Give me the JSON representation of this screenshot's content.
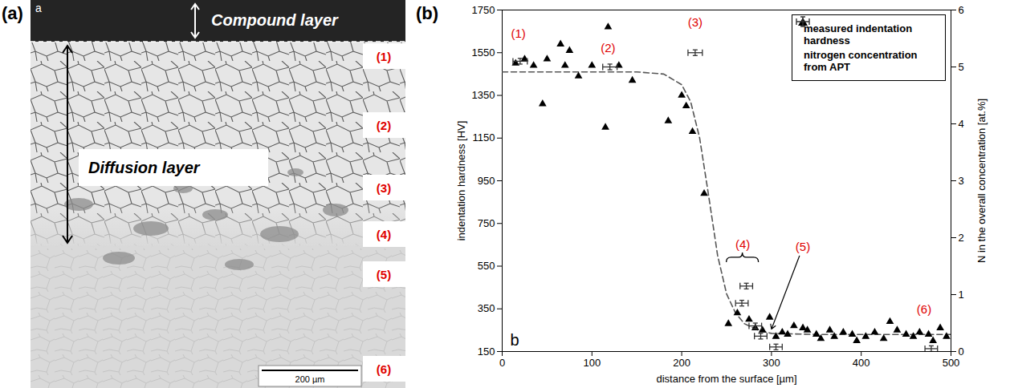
{
  "panel_labels": [
    "(a)",
    "(b)"
  ],
  "micrograph": {
    "letter": "a",
    "compound_layer": "Compound layer",
    "diffusion_layer": "Diffusion layer",
    "zone_labels": [
      "(1)",
      "(2)",
      "(3)",
      "(4)",
      "(5)",
      "(6)"
    ],
    "scale_bar": "200 µm"
  },
  "chart_data": {
    "type": "scatter",
    "letter": "b",
    "x_label": "distance from the surface [µm]",
    "y_label": "indentation hardness [HV]",
    "y2_label": "N in the overall concentration [at.%]",
    "xlim": [
      0,
      500
    ],
    "xticks": [
      0,
      100,
      200,
      300,
      400,
      500
    ],
    "ylim": [
      150,
      1750
    ],
    "yticks": [
      150,
      350,
      550,
      750,
      950,
      1150,
      1350,
      1550,
      1750
    ],
    "y2lim": [
      0,
      6
    ],
    "y2ticks": [
      0,
      1,
      2,
      3,
      4,
      5,
      6
    ],
    "legend": "top-right",
    "series": [
      {
        "name": "measured indentation hardness",
        "type": "scatter",
        "marker": "triangle",
        "color": "#000000",
        "x": [
          15,
          25,
          35,
          45,
          50,
          65,
          70,
          75,
          85,
          100,
          115,
          118,
          130,
          145,
          185,
          200,
          205,
          212,
          225,
          252,
          262,
          275,
          282,
          290,
          298,
          305,
          312,
          318,
          325,
          335,
          340,
          350,
          355,
          365,
          370,
          380,
          390,
          395,
          405,
          415,
          425,
          432,
          440,
          450,
          458,
          465,
          475,
          480,
          488,
          495
        ],
        "values": [
          1500,
          1520,
          1490,
          1310,
          1520,
          1590,
          1490,
          1560,
          1440,
          1490,
          1200,
          1670,
          1490,
          1420,
          1230,
          1350,
          1300,
          1180,
          890,
          280,
          330,
          300,
          260,
          250,
          310,
          220,
          240,
          230,
          270,
          260,
          250,
          230,
          210,
          250,
          220,
          240,
          230,
          200,
          220,
          240,
          210,
          290,
          250,
          230,
          220,
          240,
          230,
          200,
          260,
          220
        ]
      },
      {
        "type": "line",
        "line_style": "dashed",
        "color": "#555555",
        "x": [
          0,
          150,
          180,
          200,
          210,
          220,
          230,
          240,
          250,
          260,
          270,
          285,
          300,
          350,
          400,
          500
        ],
        "values": [
          1460,
          1460,
          1450,
          1400,
          1320,
          1150,
          880,
          600,
          420,
          330,
          280,
          250,
          235,
          230,
          230,
          230
        ]
      },
      {
        "name": "nitrogen concentration from APT",
        "type": "errorbar",
        "axis": "y2",
        "color": "#333333",
        "x": [
          20,
          120,
          215,
          272,
          267,
          282,
          288,
          305,
          478
        ],
        "values": [
          5.1,
          5.0,
          5.25,
          1.15,
          0.85,
          0.45,
          0.27,
          0.08,
          0.05
        ],
        "x_err": [
          8,
          8,
          8,
          7,
          7,
          7,
          7,
          7,
          7
        ],
        "y_err": [
          0.05,
          0.05,
          0.05,
          0.05,
          0.05,
          0.05,
          0.05,
          0.05,
          0.05
        ]
      }
    ],
    "annotations": [
      {
        "text": "(1)",
        "x": 18,
        "y": 1640,
        "color": "#e00000"
      },
      {
        "text": "(2)",
        "x": 118,
        "y": 1570,
        "color": "#e00000"
      },
      {
        "text": "(3)",
        "x": 215,
        "y": 1690,
        "color": "#e00000"
      },
      {
        "text": "(4)",
        "x": 268,
        "y": 650,
        "color": "#e00000",
        "marker": "brace"
      },
      {
        "text": "(5)",
        "x": 335,
        "y": 640,
        "color": "#e00000",
        "arrow": {
          "x": 300,
          "y": 255
        }
      },
      {
        "text": "(6)",
        "x": 470,
        "y": 345,
        "color": "#e00000"
      }
    ]
  }
}
